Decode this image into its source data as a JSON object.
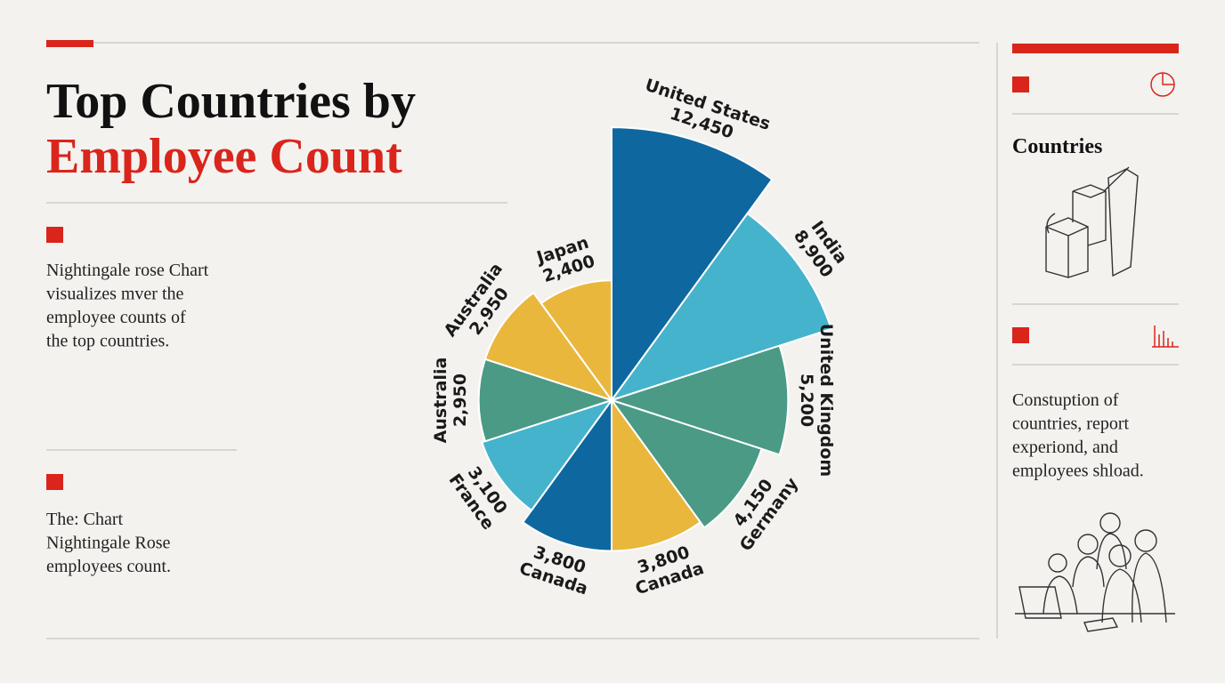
{
  "chart_data": {
    "type": "rose",
    "title_lines": [
      "Top Countries by",
      "Employee Count"
    ],
    "categories": [
      "United States",
      "India",
      "United Kingdom",
      "Germany",
      "Canada",
      "Canada",
      "France",
      "Australia",
      "Australia",
      "Japan"
    ],
    "values": [
      12450,
      8900,
      5200,
      4150,
      3800,
      3800,
      3100,
      2950,
      2950,
      2400
    ],
    "value_labels": [
      "12,450",
      "8,900",
      "5,200",
      "4,150",
      "3,800",
      "3,800",
      "3,100",
      "2,950",
      "2,950",
      "2,400"
    ],
    "colors": [
      "#0f67a0",
      "#45b3cc",
      "#4a9a86",
      "#4a9a86",
      "#e9b73c",
      "#0f67a0",
      "#45b3cc",
      "#4a9a86",
      "#e9b73c",
      "#e9b73c"
    ]
  },
  "left_panel": {
    "notes": [
      [
        "Nightingale rose Chart",
        "visualizes mver the",
        "employee counts of",
        "the top countries."
      ],
      [
        "The: Chart",
        "Nightingale Rose",
        "employees count."
      ]
    ]
  },
  "right_panel": {
    "heading": "Countries",
    "note": [
      "Constuption of",
      "countries, report",
      "experiond, and",
      "employees shload."
    ]
  }
}
